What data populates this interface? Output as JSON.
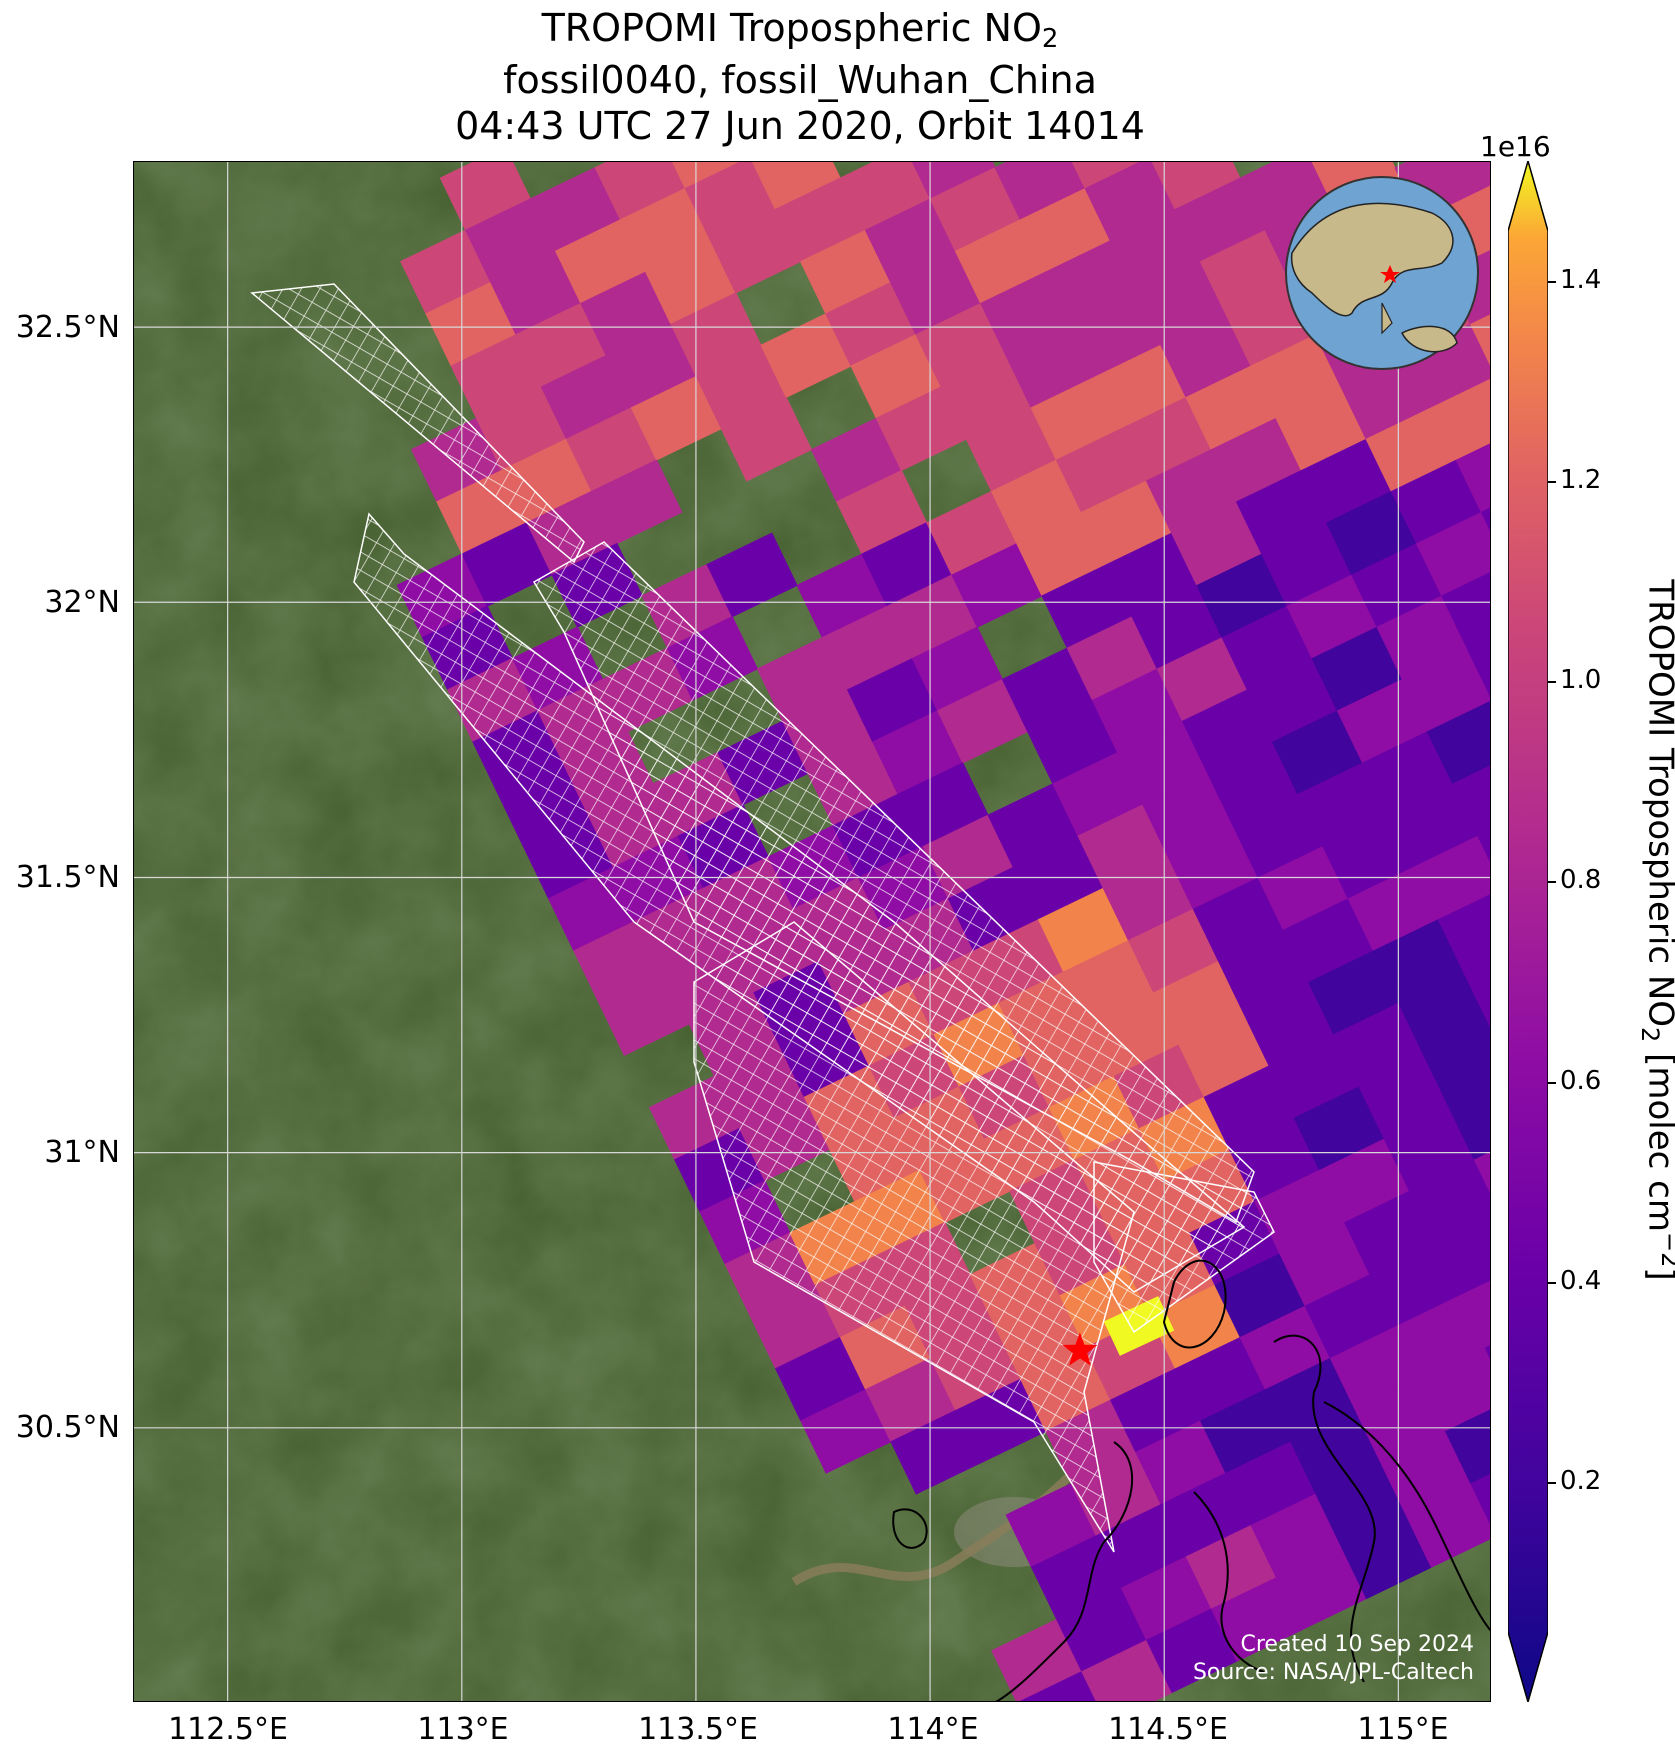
{
  "title": {
    "line1_main": "TROPOMI Tropospheric NO",
    "line1_sub": "2",
    "line2": "fossil0040, fossil_Wuhan_China",
    "line3": "04:43 UTC 27 Jun 2020, Orbit 14014"
  },
  "map": {
    "lat_ticks": [
      "32.5°N",
      "32°N",
      "31.5°N",
      "31°N",
      "30.5°N"
    ],
    "lon_ticks": [
      "112.5°E",
      "113°E",
      "113.5°E",
      "114°E",
      "114.5°E",
      "115°E"
    ],
    "lat_values": [
      32.5,
      32.0,
      31.5,
      31.0,
      30.5
    ],
    "lon_values": [
      112.5,
      113.0,
      113.5,
      114.0,
      114.5,
      115.0
    ],
    "extent": {
      "lon": [
        112.3,
        115.2
      ],
      "lat": [
        30.0,
        32.8
      ]
    },
    "site_marker": {
      "name": "Wuhan",
      "lon": 114.32,
      "lat": 30.64,
      "color": "#ff0000"
    },
    "credits_line1": "Created 10 Sep 2024",
    "credits_line2": "Source: NASA/JPL-Caltech"
  },
  "colorbar": {
    "exponent": "1e16",
    "ticks": [
      "1.4",
      "1.2",
      "1.0",
      "0.8",
      "0.6",
      "0.4",
      "0.2"
    ],
    "tick_values": [
      1.4,
      1.2,
      1.0,
      0.8,
      0.6,
      0.4,
      0.2
    ],
    "range": [
      0.05,
      1.45
    ],
    "label_main": "TROPOMI Tropospheric NO",
    "label_sub": "2",
    "label_units": " [molec cm",
    "label_sup": "−2",
    "label_end": "]",
    "colormap": "plasma",
    "extend": "both"
  },
  "colors": {
    "land": "#3f5a2a",
    "grid": "#d8d8d8",
    "ocean": "#6fa3d2",
    "target_grid": "#ffffff"
  }
}
